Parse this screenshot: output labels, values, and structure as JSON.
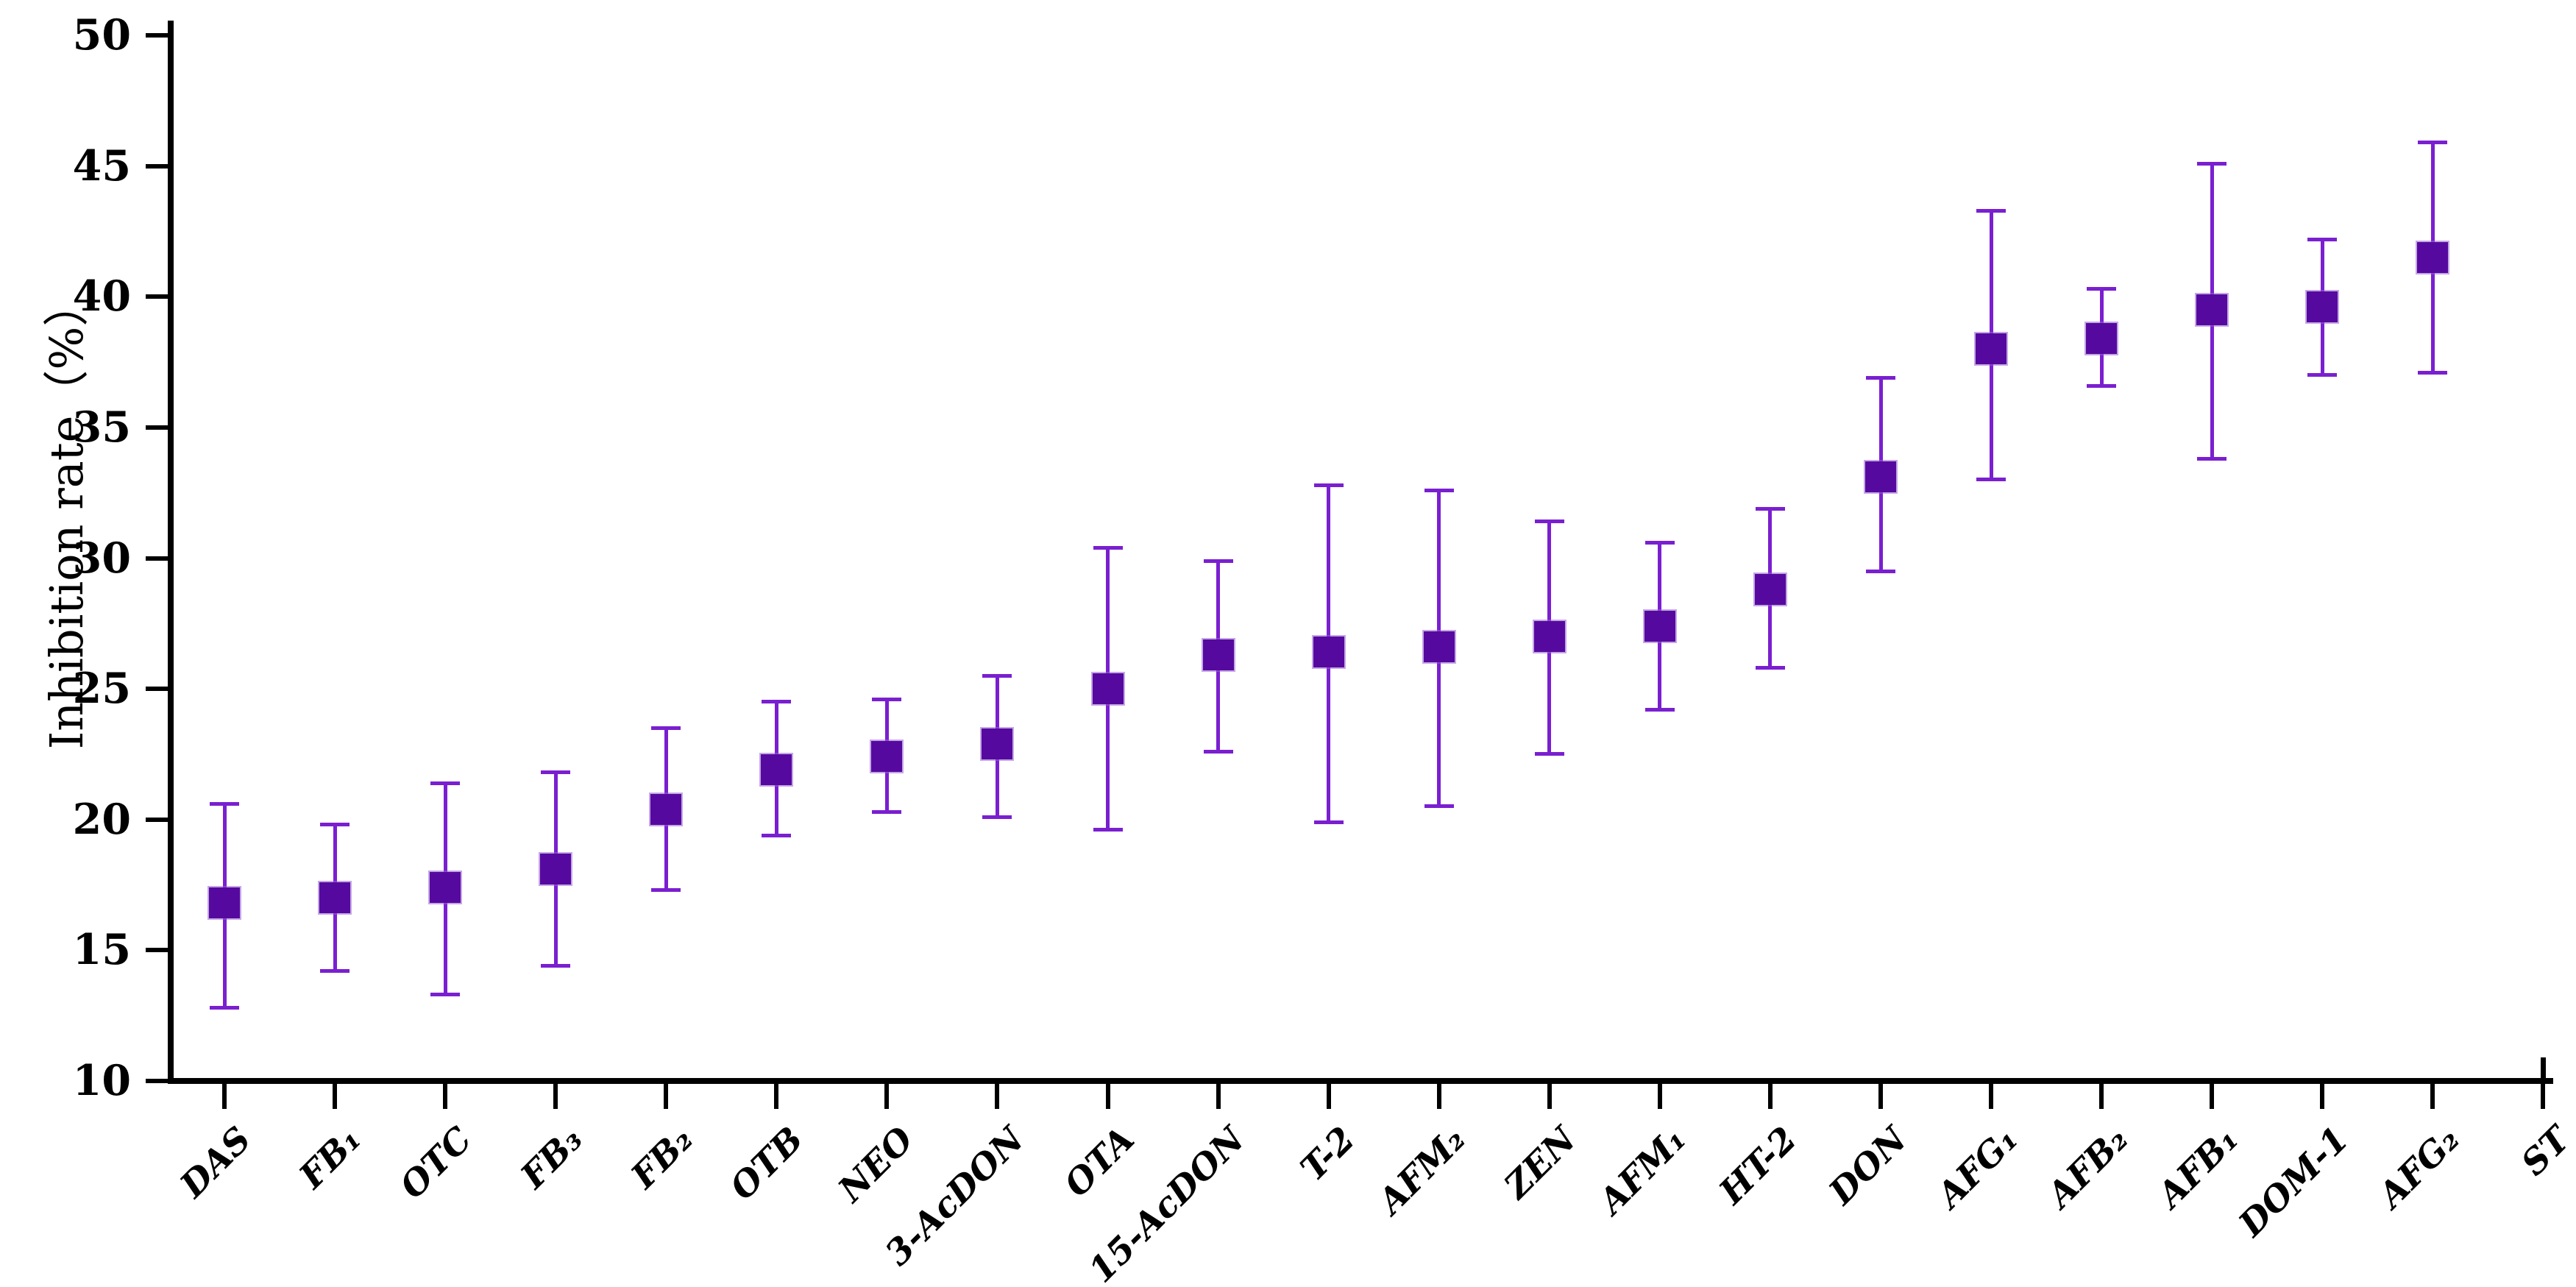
{
  "chart_data": {
    "type": "scatter",
    "subtype": "point-with-error-bars",
    "title": "",
    "xlabel": "",
    "ylabel": "Inhibition rate（%）",
    "ylim": [
      10,
      50
    ],
    "yticks": [
      10,
      15,
      20,
      25,
      30,
      35,
      40,
      45,
      50
    ],
    "grid": false,
    "legend_position": "none",
    "categories": [
      "DAS",
      "FB₁",
      "OTC",
      "FB₃",
      "FB₂",
      "OTB",
      "NEO",
      "3-AcDON",
      "OTA",
      "15-AcDON",
      "T-2",
      "AFM₂",
      "ZEN",
      "AFM₁",
      "HT-2",
      "DON",
      "AFG₁",
      "AFB₂",
      "AFB₁",
      "DOM-1",
      "AFG₂",
      "ST"
    ],
    "series": [
      {
        "name": "Inhibition rate (%)",
        "values": [
          16.8,
          17.0,
          17.4,
          18.1,
          20.4,
          21.9,
          22.4,
          22.9,
          25.0,
          26.3,
          26.4,
          26.6,
          27.0,
          27.4,
          28.8,
          33.1,
          38.0,
          38.4,
          39.5,
          39.6,
          41.5,
          null
        ],
        "error_low": [
          12.8,
          14.2,
          13.3,
          14.4,
          17.3,
          19.4,
          20.3,
          20.1,
          19.6,
          22.6,
          19.9,
          20.5,
          22.5,
          24.2,
          25.8,
          29.5,
          33.0,
          36.6,
          33.8,
          37.0,
          37.1,
          null
        ],
        "error_high": [
          20.6,
          19.8,
          21.4,
          21.8,
          23.5,
          24.5,
          24.6,
          25.5,
          30.4,
          29.9,
          32.8,
          32.6,
          31.4,
          30.6,
          31.9,
          36.9,
          43.3,
          40.3,
          45.1,
          42.2,
          45.9,
          null
        ]
      }
    ],
    "colors": {
      "marker": "#56099f",
      "whisker": "#7a1fd0",
      "axis": "#000000",
      "background": "#ffffff"
    },
    "marker_shape": "square"
  }
}
